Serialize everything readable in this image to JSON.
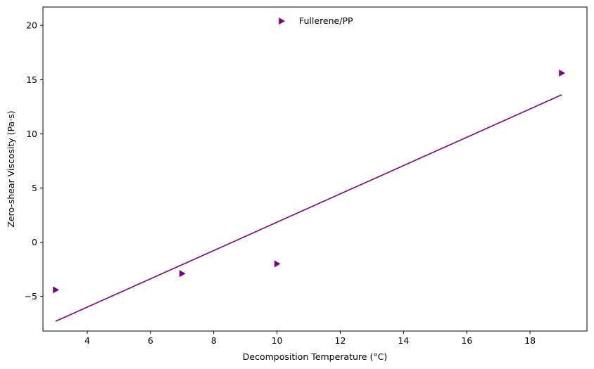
{
  "chart_data": {
    "type": "scatter",
    "xlabel": "Decomposition Temperature (°C)",
    "ylabel": "Zero-shear Viscosity (Pa·s)",
    "xlim": [
      2.6,
      19.8
    ],
    "ylim": [
      -8.2,
      21.7
    ],
    "xticks": [
      4,
      6,
      8,
      10,
      12,
      14,
      16,
      18
    ],
    "yticks": [
      -5,
      0,
      5,
      10,
      15,
      20
    ],
    "x_tick_labels": [
      "4",
      "6",
      "8",
      "10",
      "12",
      "14",
      "16",
      "18"
    ],
    "y_tick_labels": [
      "−5",
      "0",
      "5",
      "10",
      "15",
      "20"
    ],
    "grid": false,
    "legend_position": "top-center",
    "series": [
      {
        "name": "Fullerene/PP",
        "marker": "triangle-right",
        "color": "#800080",
        "points": [
          {
            "x": 3.0,
            "y": -4.4
          },
          {
            "x": 7.0,
            "y": -2.9
          },
          {
            "x": 10.0,
            "y": -2.0
          },
          {
            "x": 19.0,
            "y": 15.6
          }
        ]
      }
    ],
    "fit_line": {
      "color": "#800080",
      "start": {
        "x": 3.0,
        "y": -7.3
      },
      "end": {
        "x": 19.0,
        "y": 13.6
      }
    }
  }
}
